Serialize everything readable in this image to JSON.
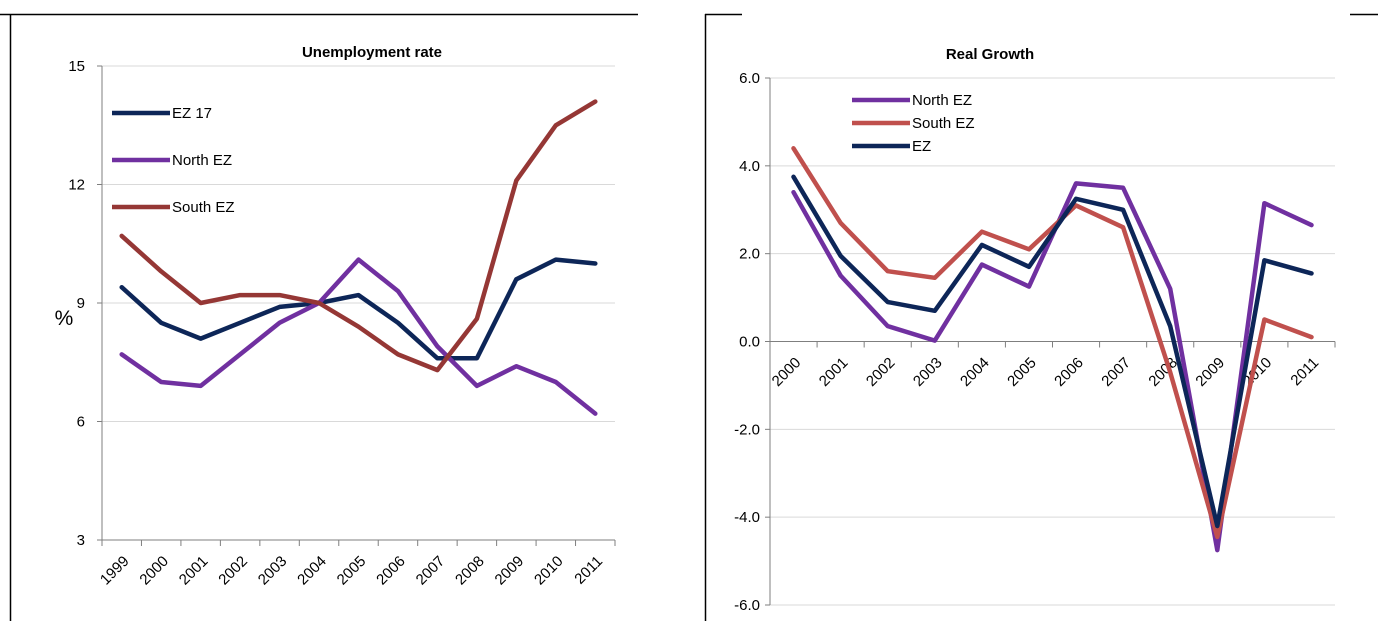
{
  "chart_data": [
    {
      "type": "line",
      "title": "Unemployment rate",
      "ylabel": "%",
      "xlabel": "",
      "ylim": [
        3,
        15
      ],
      "yticks": [
        3,
        6,
        9,
        12,
        15
      ],
      "ytick_labels": [
        "3",
        "6",
        "9",
        "12",
        "15"
      ],
      "x": [
        "1999",
        "2000",
        "2001",
        "2002",
        "2003",
        "2004",
        "2005",
        "2006",
        "2007",
        "2008",
        "2009",
        "2010",
        "2011"
      ],
      "grid": true,
      "legend": "top-left",
      "series": [
        {
          "name": "EZ 17",
          "color": "#0d2658",
          "values": [
            9.4,
            8.5,
            8.1,
            8.5,
            8.9,
            9.0,
            9.2,
            8.5,
            7.6,
            7.6,
            9.6,
            10.1,
            10.0
          ]
        },
        {
          "name": "North EZ",
          "color": "#7030a0",
          "values": [
            7.7,
            7.0,
            6.9,
            7.7,
            8.5,
            9.0,
            10.1,
            9.3,
            7.9,
            6.9,
            7.4,
            7.0,
            6.2
          ]
        },
        {
          "name": "South EZ",
          "color": "#953735",
          "values": [
            10.7,
            9.8,
            9.0,
            9.2,
            9.2,
            9.0,
            8.4,
            7.7,
            7.3,
            8.6,
            12.1,
            13.5,
            14.1
          ]
        }
      ]
    },
    {
      "type": "line",
      "title": "Real Growth",
      "ylabel": "",
      "xlabel": "",
      "ylim": [
        -6,
        6
      ],
      "yticks": [
        -6,
        -4,
        -2,
        0,
        2,
        4,
        6
      ],
      "ytick_labels": [
        "-6.0",
        "-4.0",
        "-2.0",
        "0.0",
        "2.0",
        "4.0",
        "6.0"
      ],
      "x": [
        "2000",
        "2001",
        "2002",
        "2003",
        "2004",
        "2005",
        "2006",
        "2007",
        "2008",
        "2009",
        "2010",
        "2011"
      ],
      "grid": true,
      "legend": "top-left",
      "series": [
        {
          "name": "North EZ",
          "color": "#7030a0",
          "values": [
            3.4,
            1.5,
            0.35,
            0.02,
            1.75,
            1.25,
            3.6,
            3.5,
            1.2,
            -4.75,
            3.15,
            2.65
          ]
        },
        {
          "name": "South EZ",
          "color": "#c0504d",
          "values": [
            4.4,
            2.7,
            1.6,
            1.45,
            2.5,
            2.1,
            3.1,
            2.6,
            -0.7,
            -4.45,
            0.5,
            0.1
          ]
        },
        {
          "name": "EZ",
          "color": "#0d2658",
          "values": [
            3.75,
            1.95,
            0.9,
            0.7,
            2.2,
            1.7,
            3.25,
            3.0,
            0.35,
            -4.2,
            1.85,
            1.55
          ]
        }
      ]
    }
  ]
}
